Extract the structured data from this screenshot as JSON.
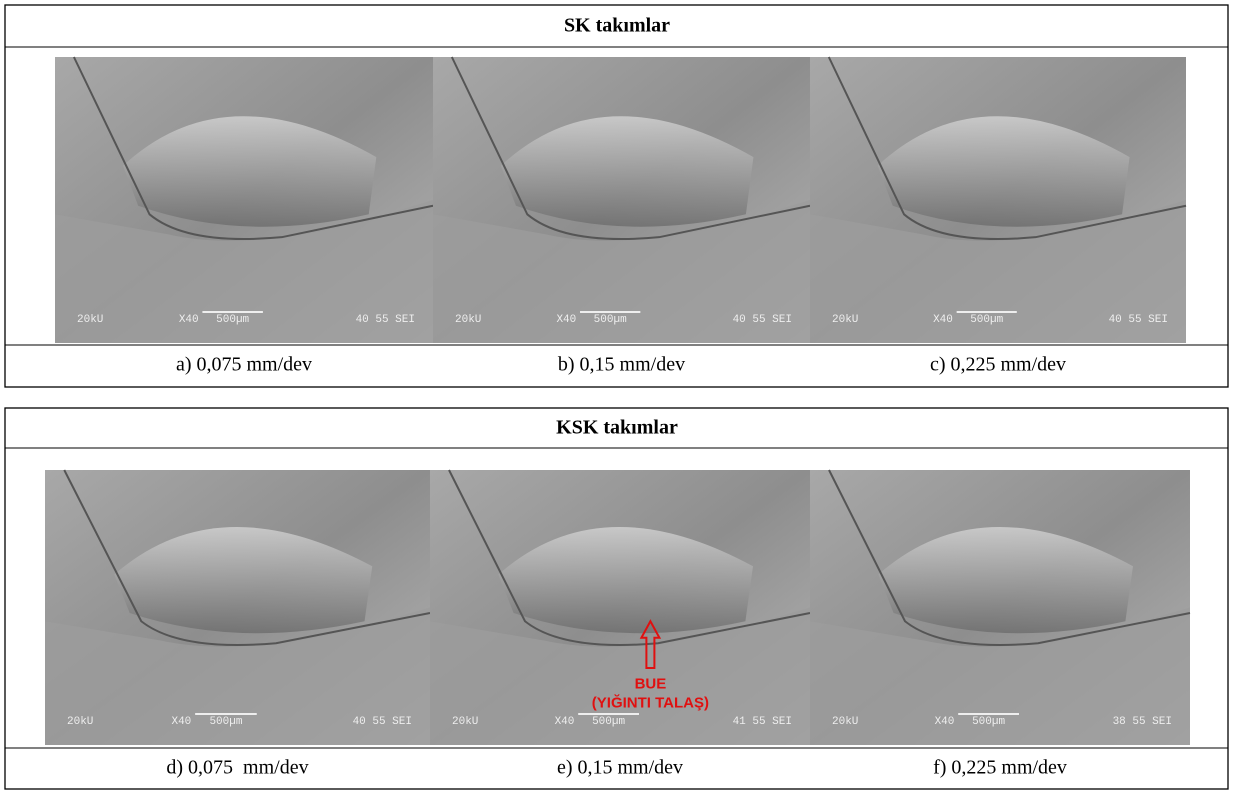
{
  "panels": [
    {
      "title": "SK takımlar",
      "images": [
        {
          "caption": "a) 0,075 mm/dev",
          "sem": [
            "20kU",
            "X40",
            "500µm",
            "40 55 SEI"
          ]
        },
        {
          "caption": "b) 0,15 mm/dev",
          "sem": [
            "20kU",
            "X40",
            "500µm",
            "40 55 SEI"
          ]
        },
        {
          "caption": "c) 0,225 mm/dev",
          "sem": [
            "20kU",
            "X40",
            "500µm",
            "40 55 SEI"
          ]
        }
      ]
    },
    {
      "title": "KSK takımlar",
      "images": [
        {
          "caption": "d) 0,075  mm/dev",
          "sem": [
            "20kU",
            "X40",
            "500µm",
            "40 55 SEI"
          ]
        },
        {
          "caption": "e) 0,15 mm/dev",
          "sem": [
            "20kU",
            "X40",
            "500µm",
            "41 55 SEI"
          ],
          "annotation": [
            "BUE",
            "(YIĞINTI TALAŞ)"
          ]
        },
        {
          "caption": "f) 0,225 mm/dev",
          "sem": [
            "20kU",
            "X40",
            "500µm",
            "38 55 SEI"
          ]
        }
      ]
    }
  ]
}
